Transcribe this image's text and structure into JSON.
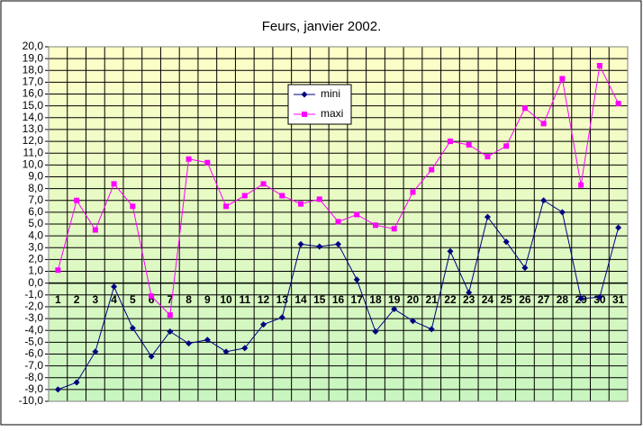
{
  "chart_data": {
    "type": "line",
    "title": "Feurs, janvier 2002.",
    "categories": [
      "1",
      "2",
      "3",
      "4",
      "5",
      "6",
      "7",
      "8",
      "9",
      "10",
      "11",
      "12",
      "13",
      "14",
      "15",
      "16",
      "17",
      "18",
      "19",
      "20",
      "21",
      "22",
      "23",
      "24",
      "25",
      "26",
      "27",
      "28",
      "29",
      "30",
      "31"
    ],
    "series": [
      {
        "name": "mini",
        "color": "#000080",
        "marker": "diamond",
        "values": [
          -9.0,
          -8.4,
          -5.8,
          -0.3,
          -3.8,
          -6.2,
          -4.1,
          -5.1,
          -4.8,
          -5.8,
          -5.5,
          -3.5,
          -2.9,
          3.3,
          3.1,
          3.3,
          0.3,
          -4.1,
          -2.2,
          -3.2,
          -3.9,
          2.7,
          -0.8,
          5.6,
          3.5,
          1.3,
          7.0,
          6.0,
          -1.3,
          -1.2,
          4.7
        ]
      },
      {
        "name": "maxi",
        "color": "#ff00ff",
        "marker": "square",
        "values": [
          1.1,
          7.0,
          4.5,
          8.4,
          6.5,
          -1.1,
          -2.7,
          10.5,
          10.2,
          6.5,
          7.4,
          8.4,
          7.4,
          6.7,
          7.1,
          5.2,
          5.8,
          4.9,
          4.6,
          7.7,
          9.6,
          12.0,
          11.7,
          10.7,
          11.6,
          14.8,
          13.5,
          17.3,
          8.3,
          18.4,
          15.2
        ]
      }
    ],
    "ylim": [
      -10,
      20
    ],
    "yticks": [
      {
        "value": -10,
        "label": "-10,0"
      },
      {
        "value": -9,
        "label": "-9,0"
      },
      {
        "value": -8,
        "label": "-8,0"
      },
      {
        "value": -7,
        "label": "-7,0"
      },
      {
        "value": -6,
        "label": "-6,0"
      },
      {
        "value": -5,
        "label": "-5,0"
      },
      {
        "value": -4,
        "label": "-4,0"
      },
      {
        "value": -3,
        "label": "-3,0"
      },
      {
        "value": -2,
        "label": "-2,0"
      },
      {
        "value": -1,
        "label": "-1,0"
      },
      {
        "value": 0,
        "label": "0,0"
      },
      {
        "value": 1,
        "label": "1,0"
      },
      {
        "value": 2,
        "label": "2,0"
      },
      {
        "value": 3,
        "label": "3,0"
      },
      {
        "value": 4,
        "label": "4,0"
      },
      {
        "value": 5,
        "label": "5,0"
      },
      {
        "value": 6,
        "label": "6,0"
      },
      {
        "value": 7,
        "label": "7,0"
      },
      {
        "value": 8,
        "label": "8,0"
      },
      {
        "value": 9,
        "label": "9,0"
      },
      {
        "value": 10,
        "label": "10,0"
      },
      {
        "value": 11,
        "label": "11,0"
      },
      {
        "value": 12,
        "label": "12,0"
      },
      {
        "value": 13,
        "label": "13,0"
      },
      {
        "value": 14,
        "label": "14,0"
      },
      {
        "value": 15,
        "label": "15,0"
      },
      {
        "value": 16,
        "label": "16,0"
      },
      {
        "value": 17,
        "label": "17,0"
      },
      {
        "value": 18,
        "label": "18,0"
      },
      {
        "value": 19,
        "label": "19,0"
      },
      {
        "value": 20,
        "label": "20,0"
      }
    ],
    "grid": true
  }
}
